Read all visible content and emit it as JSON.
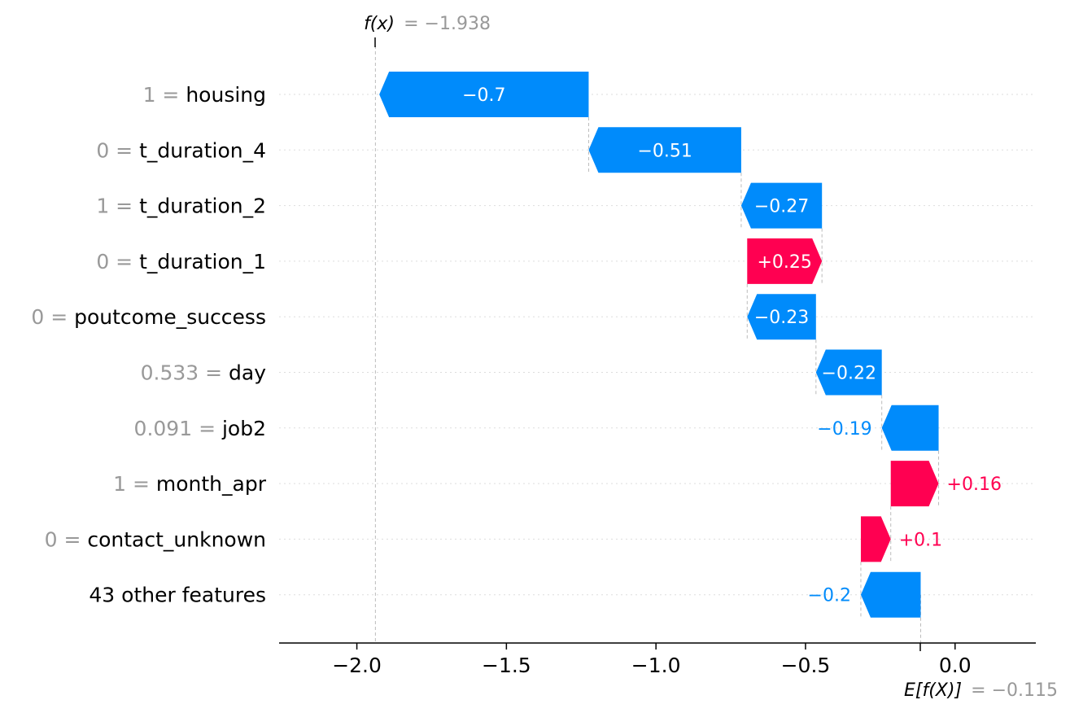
{
  "chart_data": {
    "type": "waterfall",
    "base_value": -0.115,
    "output_value": -1.938,
    "base_label": "E[f(X)]",
    "base_value_text": "= −0.115",
    "output_label": "f(x)",
    "output_value_text": "= −1.938",
    "xlim": [
      -2.26,
      0.27
    ],
    "xticks": [
      -2.0,
      -1.5,
      -1.0,
      -0.5,
      0.0
    ],
    "xtick_labels": [
      "−2.0",
      "−1.5",
      "−1.0",
      "−0.5",
      "0.0"
    ],
    "grid": "horizontal dotted",
    "features": [
      {
        "value": "1",
        "name": "housing",
        "contribution": -0.7,
        "label": "−0.7"
      },
      {
        "value": "0",
        "name": "t_duration_4",
        "contribution": -0.51,
        "label": "−0.51"
      },
      {
        "value": "1",
        "name": "t_duration_2",
        "contribution": -0.27,
        "label": "−0.27"
      },
      {
        "value": "0",
        "name": "t_duration_1",
        "contribution": 0.25,
        "label": "+0.25"
      },
      {
        "value": "0",
        "name": "poutcome_success",
        "contribution": -0.23,
        "label": "−0.23"
      },
      {
        "value": "0.533",
        "name": "day",
        "contribution": -0.22,
        "label": "−0.22"
      },
      {
        "value": "0.091",
        "name": "job2",
        "contribution": -0.19,
        "label": "−0.19"
      },
      {
        "value": "1",
        "name": "month_apr",
        "contribution": 0.16,
        "label": "+0.16"
      },
      {
        "value": "0",
        "name": "contact_unknown",
        "contribution": 0.1,
        "label": "+0.1"
      },
      {
        "value": "",
        "name": "43 other features",
        "contribution": -0.2,
        "label": "−0.2"
      }
    ],
    "colors": {
      "negative": "#008bfb",
      "positive": "#ff0051",
      "muted_text": "#999999",
      "axis": "#000000"
    }
  }
}
